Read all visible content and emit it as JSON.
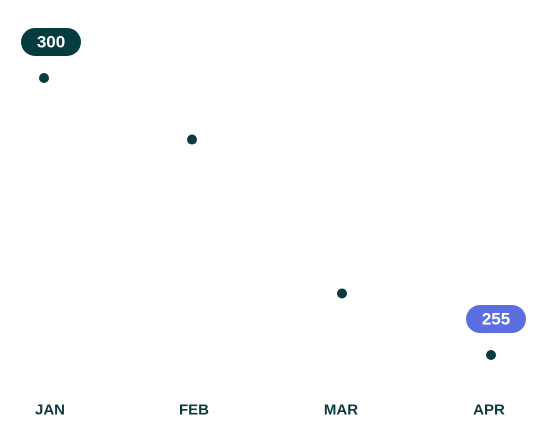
{
  "chart_data": {
    "type": "scatter",
    "categories": [
      "JAN",
      "FEB",
      "MAR",
      "APR"
    ],
    "values": [
      300,
      290,
      265,
      255
    ],
    "color": "#0b3a3f",
    "ylim": [
      250,
      305
    ],
    "labeled_points": [
      0,
      3
    ],
    "label_colors": [
      "#063c3f",
      "#5b6fe0"
    ]
  }
}
